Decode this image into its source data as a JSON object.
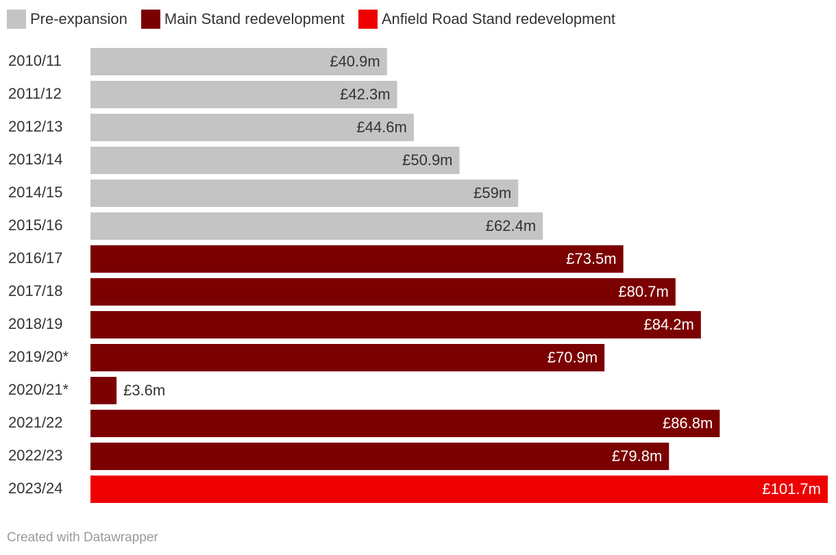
{
  "chart_data": {
    "type": "bar",
    "orientation": "horizontal",
    "legend_position": "top-left",
    "grid": false,
    "xlim": [
      0,
      101.7
    ],
    "legend": [
      {
        "label": "Pre-expansion",
        "color": "#c4c4c4"
      },
      {
        "label": "Main Stand redevelopment",
        "color": "#7b0000"
      },
      {
        "label": "Anfield Road Stand redevelopment",
        "color": "#ee0000"
      }
    ],
    "categories": [
      "2010/11",
      "2011/12",
      "2012/13",
      "2013/14",
      "2014/15",
      "2015/16",
      "2016/17",
      "2017/18",
      "2018/19",
      "2019/20*",
      "2020/21*",
      "2021/22",
      "2022/23",
      "2023/24"
    ],
    "values": [
      40.9,
      42.3,
      44.6,
      50.9,
      59,
      62.4,
      73.5,
      80.7,
      84.2,
      70.9,
      3.6,
      86.8,
      79.8,
      101.7
    ],
    "labels": [
      "£40.9m",
      "£42.3m",
      "£44.6m",
      "£50.9m",
      "£59m",
      "£62.4m",
      "£73.5m",
      "£80.7m",
      "£84.2m",
      "£70.9m",
      "£3.6m",
      "£86.8m",
      "£79.8m",
      "£101.7m"
    ],
    "groups": [
      0,
      0,
      0,
      0,
      0,
      0,
      1,
      1,
      1,
      1,
      1,
      1,
      1,
      2
    ]
  },
  "footer": {
    "credit": "Created with Datawrapper"
  }
}
